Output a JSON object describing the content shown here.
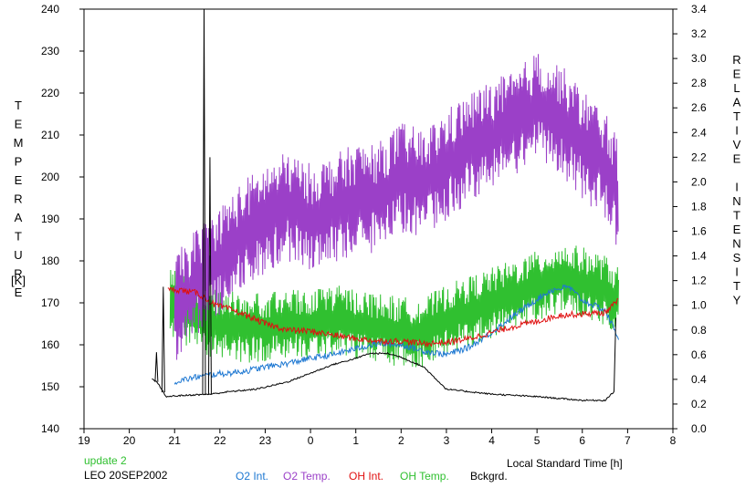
{
  "chart_data": {
    "type": "line",
    "ylabel": "TEMPERATURE",
    "ylabel_unit": "[K]",
    "y2label": "RELATIVE INTENSITY",
    "xlabel": "Local Standard Time [h]",
    "ylim": [
      140,
      240
    ],
    "y2lim": [
      0.0,
      3.4
    ],
    "x_axis": {
      "ticks": [
        19,
        20,
        21,
        22,
        23,
        24,
        25,
        26,
        27,
        28,
        29,
        30,
        31,
        32
      ],
      "tick_labels": [
        "19",
        "20",
        "21",
        "22",
        "23",
        "0",
        "1",
        "2",
        "3",
        "4",
        "5",
        "6",
        "7",
        "8"
      ]
    },
    "y_ticks": [
      "140",
      "150",
      "160",
      "170",
      "180",
      "190",
      "200",
      "210",
      "220",
      "230",
      "240"
    ],
    "y2_ticks": [
      "0.0",
      "0.2",
      "0.4",
      "0.6",
      "0.8",
      "1.0",
      "1.2",
      "1.4",
      "1.6",
      "1.8",
      "2.0",
      "2.2",
      "2.4",
      "2.6",
      "2.8",
      "3.0",
      "3.2",
      "3.4"
    ],
    "series": [
      {
        "name": "O2 Int.",
        "color": "#1e78d2",
        "axis": "right",
        "x": [
          21.0,
          21.5,
          21.85,
          22.2,
          22.6,
          23.0,
          23.5,
          24.0,
          24.5,
          25.0,
          25.5,
          26.0,
          26.5,
          27.0,
          27.5,
          28.0,
          28.5,
          29.0,
          29.3,
          29.7,
          30.0,
          30.5,
          30.8
        ],
        "y": [
          0.38,
          0.42,
          0.44,
          0.45,
          0.47,
          0.5,
          0.53,
          0.57,
          0.6,
          0.65,
          0.69,
          0.68,
          0.63,
          0.6,
          0.66,
          0.78,
          0.92,
          1.05,
          1.12,
          1.15,
          1.04,
          0.96,
          0.74
        ]
      },
      {
        "name": "O2 Temp.",
        "color": "#9b40c8",
        "axis": "left",
        "band": true,
        "x": [
          21.0,
          21.5,
          22.0,
          22.5,
          23.0,
          23.5,
          24.0,
          24.5,
          25.0,
          25.5,
          26.0,
          26.5,
          27.0,
          27.5,
          28.0,
          28.5,
          29.0,
          29.5,
          30.0,
          30.5,
          30.8
        ],
        "y": [
          168,
          175,
          180,
          186,
          190,
          193,
          190,
          192,
          195,
          195,
          200,
          198,
          203,
          207,
          210,
          212,
          217,
          214,
          208,
          203,
          195
        ]
      },
      {
        "name": "OH Int.",
        "color": "#e01010",
        "axis": "right",
        "x": [
          20.85,
          21.0,
          21.5,
          21.9,
          22.3,
          22.7,
          23.0,
          23.5,
          24.0,
          24.5,
          25.0,
          25.5,
          26.0,
          26.5,
          27.0,
          27.5,
          28.0,
          28.5,
          29.0,
          29.5,
          30.0,
          30.5,
          30.8
        ],
        "y": [
          1.12,
          1.13,
          1.1,
          1.0,
          0.96,
          0.9,
          0.85,
          0.8,
          0.79,
          0.76,
          0.73,
          0.71,
          0.71,
          0.69,
          0.7,
          0.73,
          0.78,
          0.83,
          0.87,
          0.92,
          0.93,
          0.94,
          1.04
        ]
      },
      {
        "name": "OH Temp.",
        "color": "#30c030",
        "axis": "left",
        "band": true,
        "x": [
          20.9,
          21.2,
          21.6,
          22.0,
          22.5,
          23.0,
          23.5,
          24.0,
          24.5,
          25.0,
          25.5,
          26.0,
          26.5,
          27.0,
          27.5,
          28.0,
          28.5,
          29.0,
          29.5,
          30.0,
          30.5,
          30.8
        ],
        "y": [
          170,
          168,
          166,
          165,
          164,
          164,
          165,
          165,
          166,
          165,
          164,
          163,
          163,
          166,
          168,
          170,
          172,
          174,
          176,
          175,
          173,
          170
        ]
      },
      {
        "name": "Bckgrd.",
        "color": "#000000",
        "axis": "right",
        "x": [
          20.5,
          20.6,
          20.7,
          20.8,
          21.2,
          21.8,
          22.2,
          22.8,
          23.5,
          24.0,
          24.5,
          25.0,
          25.3,
          25.7,
          26.0,
          26.5,
          27.0,
          27.5,
          28.0,
          29.0,
          30.0,
          30.5,
          30.7,
          30.75
        ],
        "y": [
          0.4,
          0.38,
          0.33,
          0.26,
          0.27,
          0.28,
          0.3,
          0.32,
          0.38,
          0.45,
          0.52,
          0.57,
          0.61,
          0.61,
          0.58,
          0.5,
          0.32,
          0.3,
          0.28,
          0.26,
          0.23,
          0.23,
          0.3,
          1.05
        ],
        "spikes": [
          {
            "x": 20.6,
            "y": 0.62
          },
          {
            "x": 20.75,
            "y": 1.15
          },
          {
            "x": 21.65,
            "y": 3.4
          },
          {
            "x": 21.78,
            "y": 2.2
          }
        ]
      }
    ],
    "annotations": [
      {
        "text": "update 2",
        "color": "#30c030"
      },
      {
        "text": "LEO 20SEP2002",
        "color": "#000000"
      }
    ],
    "legend": [
      {
        "label": "O2 Int.",
        "color": "#1e78d2"
      },
      {
        "label": "O2 Temp.",
        "color": "#9b40c8"
      },
      {
        "label": "OH Int.",
        "color": "#e01010"
      },
      {
        "label": "OH Temp.",
        "color": "#30c030"
      },
      {
        "label": "Bckgrd.",
        "color": "#000000"
      }
    ],
    "legend_position": "bottom",
    "grid": false
  }
}
